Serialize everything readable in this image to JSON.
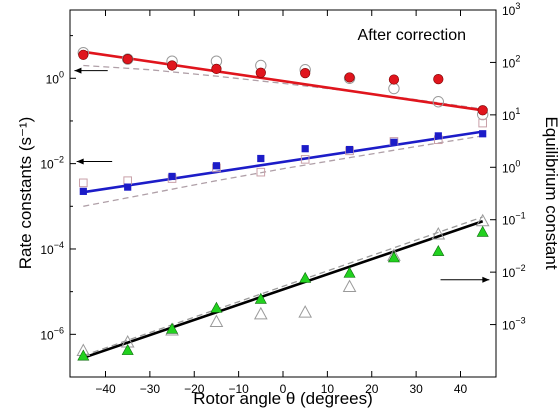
{
  "chart_data": {
    "type": "scatter",
    "title": "",
    "annotation": "After correction",
    "xlabel": "Rotor angle θ (degrees)",
    "ylabel_left": "Rate constants (s⁻¹)",
    "ylabel_right": "Equilibrium constant",
    "xlim": [
      -48,
      48
    ],
    "ylim_left_log10": [
      -7,
      1.6
    ],
    "ylim_right_log10": [
      -4,
      3
    ],
    "log_scale": true,
    "grid": false,
    "x_ticks": [
      -40,
      -30,
      -20,
      -10,
      0,
      10,
      20,
      30,
      40
    ],
    "x_tick_labels": [
      "−40",
      "−30",
      "−20",
      "−10",
      "0",
      "10",
      "20",
      "30",
      "40"
    ],
    "y_left_ticks": [
      {
        "exp": 0,
        "label": "10",
        "sup": "0"
      },
      {
        "exp": -2,
        "label": "10",
        "sup": "−2"
      },
      {
        "exp": -4,
        "label": "10",
        "sup": "−4"
      },
      {
        "exp": -6,
        "label": "10",
        "sup": "−6"
      }
    ],
    "y_right_ticks": [
      {
        "exp": 3,
        "label": "10",
        "sup": "3"
      },
      {
        "exp": 2,
        "label": "10",
        "sup": "2"
      },
      {
        "exp": 1,
        "label": "10",
        "sup": "1"
      },
      {
        "exp": 0,
        "label": "10",
        "sup": "0"
      },
      {
        "exp": -1,
        "label": "10",
        "sup": "−1"
      },
      {
        "exp": -2,
        "label": "10",
        "sup": "−2"
      },
      {
        "exp": -3,
        "label": "10",
        "sup": "−3"
      }
    ],
    "x": [
      -45,
      -35,
      -25,
      -15,
      -5,
      5,
      15,
      25,
      35,
      45
    ],
    "series": [
      {
        "marker": "filled-circle",
        "color": "#e0151d",
        "axis": "left",
        "log10_values": [
          0.55,
          0.45,
          0.3,
          0.22,
          0.13,
          0.12,
          0.02,
          -0.03,
          -0.02,
          -0.75
        ]
      },
      {
        "marker": "open-circle",
        "color": "#9a9a9a",
        "axis": "left",
        "log10_values": [
          0.6,
          0.45,
          0.4,
          0.4,
          0.3,
          0.2,
          0.0,
          -0.24,
          -0.55,
          -0.85
        ]
      },
      {
        "marker": "filled-square",
        "color": "#1c1cc8",
        "axis": "left",
        "log10_values": [
          -2.65,
          -2.55,
          -2.3,
          -2.05,
          -1.88,
          -1.65,
          -1.67,
          -1.5,
          -1.35,
          -1.3
        ]
      },
      {
        "marker": "open-square",
        "color": "#c8a0a8",
        "axis": "left",
        "log10_values": [
          -2.45,
          -2.4,
          -2.35,
          -2.1,
          -2.2,
          -1.9,
          -1.7,
          -1.48,
          -1.44,
          -1.05
        ]
      },
      {
        "marker": "filled-triangle",
        "color": "#22d11f",
        "axis": "left",
        "log10_values": [
          -6.5,
          -6.37,
          -5.87,
          -5.38,
          -5.17,
          -4.68,
          -4.56,
          -4.2,
          -4.05,
          -3.6
        ]
      },
      {
        "marker": "open-triangle",
        "color": "#9a9a9a",
        "axis": "left",
        "log10_values": [
          -6.38,
          -6.18,
          -5.9,
          -5.7,
          -5.52,
          -5.48,
          -4.88,
          -4.15,
          -3.65,
          -3.34
        ]
      }
    ],
    "fit_lines": [
      {
        "color": "#e0151d",
        "style": "solid",
        "x": [
          -45,
          45
        ],
        "log10_values": [
          0.62,
          -0.75
        ]
      },
      {
        "color": "#1c1cc8",
        "style": "solid",
        "x": [
          -45,
          45
        ],
        "log10_values": [
          -2.67,
          -1.25
        ]
      },
      {
        "color": "#000000",
        "style": "solid",
        "x": [
          -45,
          45
        ],
        "log10_values": [
          -6.55,
          -3.35
        ]
      }
    ],
    "dashed_curves": [
      {
        "color": "#b0a0a8",
        "x": [
          -45,
          -30,
          -15,
          0,
          15,
          30,
          45
        ],
        "log10_values": [
          0.3,
          0.2,
          0.05,
          -0.12,
          -0.3,
          -0.5,
          -0.72
        ]
      },
      {
        "color": "#b0a0a8",
        "x": [
          -45,
          -30,
          -15,
          0,
          15,
          30,
          45
        ],
        "log10_values": [
          -3.0,
          -2.7,
          -2.4,
          -2.12,
          -1.86,
          -1.6,
          -1.35
        ]
      },
      {
        "color": "#9a9a9a",
        "x": [
          -45,
          45
        ],
        "log10_values": [
          -6.5,
          -3.25
        ]
      }
    ],
    "arrows": [
      {
        "direction": "left",
        "x_from": -39.5,
        "x_to": -47,
        "log10_y": 0.18
      },
      {
        "direction": "left",
        "x_from": -38.5,
        "x_to": -46.5,
        "log10_y": -1.95
      },
      {
        "direction": "right",
        "x_from": 35.5,
        "x_to": 46.5,
        "log10_y": -4.72
      }
    ]
  }
}
